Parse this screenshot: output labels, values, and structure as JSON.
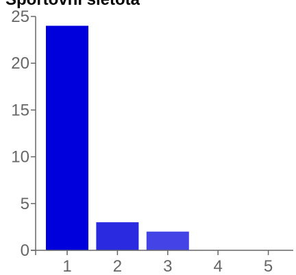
{
  "chart_data": {
    "type": "bar",
    "title": "Sportovní sietota",
    "xlabel": "",
    "ylabel": "",
    "categories": [
      "1",
      "2",
      "3",
      "4",
      "5"
    ],
    "values": [
      24,
      3,
      2,
      0,
      0
    ],
    "bar_colors": [
      "#0000dd",
      "#2a2ae0",
      "#4444e6",
      "#5c5cea",
      "#7070ee"
    ],
    "ylim": [
      0,
      25
    ],
    "y_ticks": [
      "0",
      "5",
      "10",
      "15",
      "20",
      "25"
    ],
    "axis_color": "#666666",
    "grid": false,
    "legend": "none"
  }
}
